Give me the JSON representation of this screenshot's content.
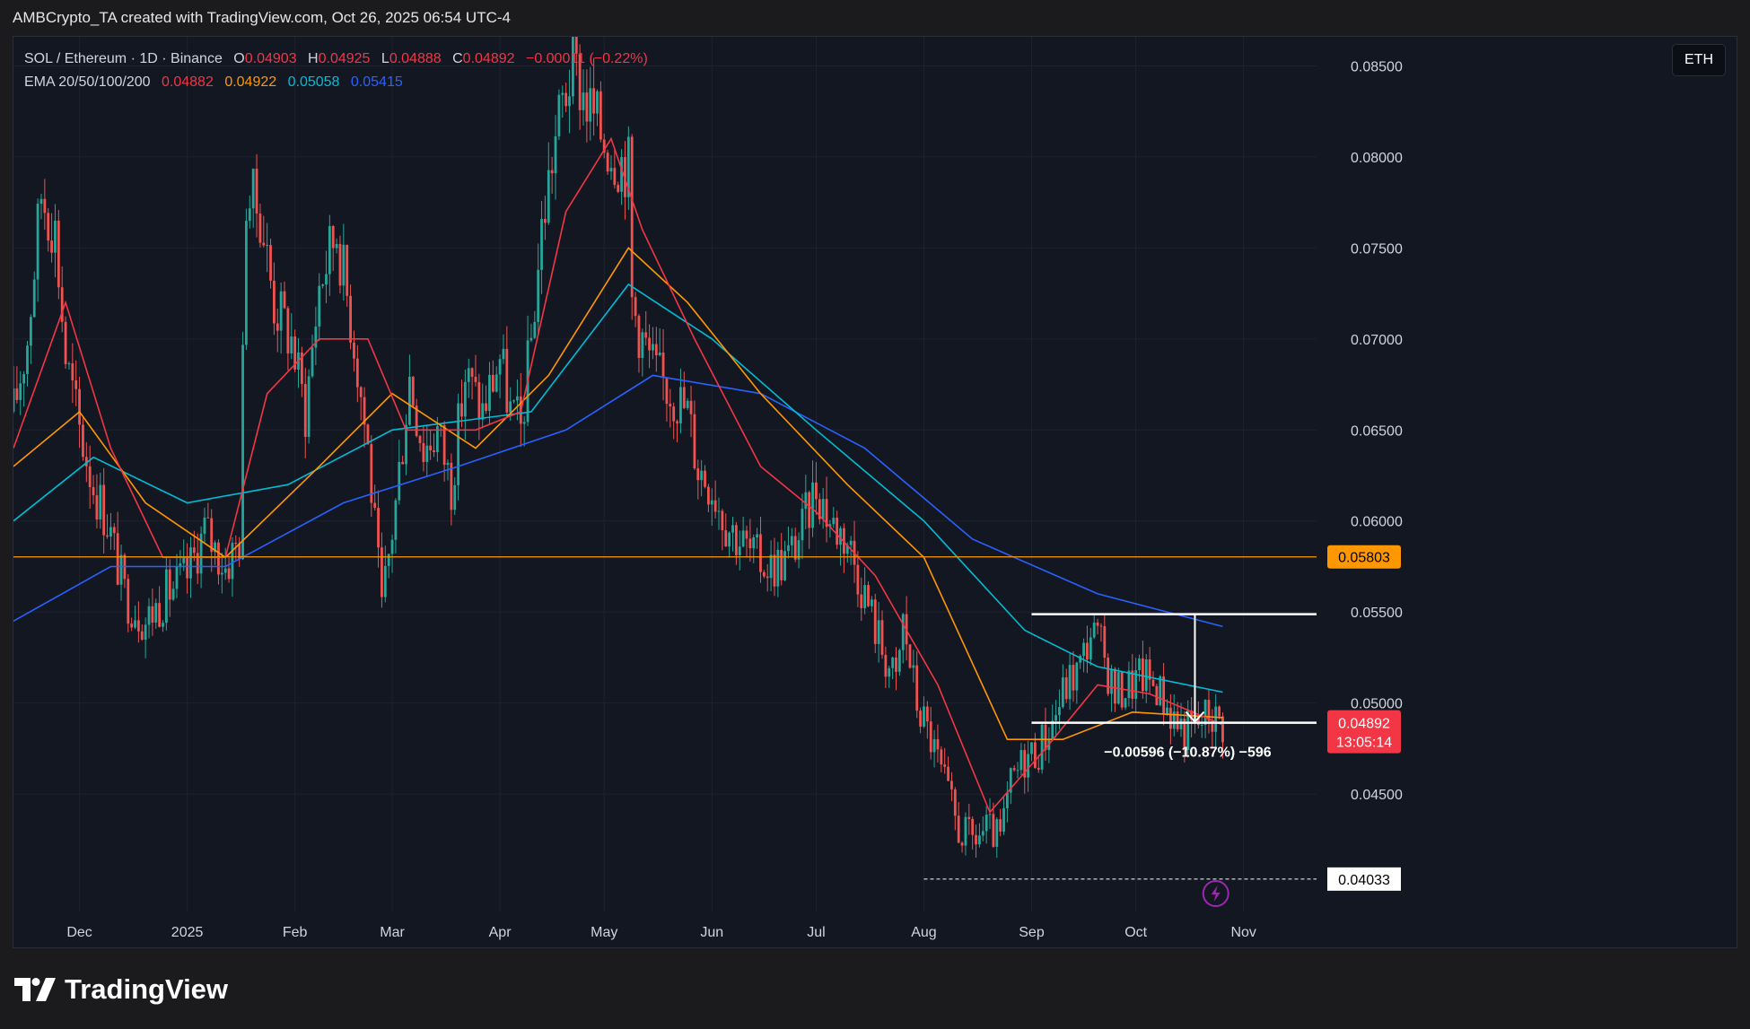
{
  "credit": "AMBCrypto_TA created with TradingView.com, Oct 26, 2025 06:54 UTC-4",
  "legend": {
    "symbol": "SOL / Ethereum · 1D · Binance",
    "o_label": "O",
    "o_value": "0.04903",
    "h_label": "H",
    "h_value": "0.04925",
    "l_label": "L",
    "l_value": "0.04888",
    "c_label": "C",
    "c_value": "0.04892",
    "change": "−0.00011 (−0.22%)",
    "ema_label": "EMA 20/50/100/200",
    "ema20": "0.04882",
    "ema50": "0.04922",
    "ema100": "0.05058",
    "ema200": "0.05415"
  },
  "symbol_button": "ETH",
  "logo_text": "TradingView",
  "colors": {
    "background": "#131722",
    "up": "#26a69a",
    "down": "#ef5350",
    "ema20": "#f23645",
    "ema50": "#ff9800",
    "ema100": "#00bcd4",
    "ema200": "#2962ff",
    "hline": "#ff9800",
    "price_tag": "#f23645",
    "support_tag": "#ffffff"
  },
  "chart_data": {
    "type": "candlestick",
    "y_axis_ticks": [
      "0.04500",
      "0.05000",
      "0.05500",
      "0.06000",
      "0.06500",
      "0.07000",
      "0.07500",
      "0.08000",
      "0.08500"
    ],
    "x_axis_ticks": [
      {
        "label": "Dec",
        "date": "2024-12-01"
      },
      {
        "label": "2025",
        "date": "2025-01-01"
      },
      {
        "label": "Feb",
        "date": "2025-02-01"
      },
      {
        "label": "Mar",
        "date": "2025-03-01"
      },
      {
        "label": "Apr",
        "date": "2025-04-01"
      },
      {
        "label": "May",
        "date": "2025-05-01"
      },
      {
        "label": "Jun",
        "date": "2025-06-01"
      },
      {
        "label": "Jul",
        "date": "2025-07-01"
      },
      {
        "label": "Aug",
        "date": "2025-08-01"
      },
      {
        "label": "Sep",
        "date": "2025-09-01"
      },
      {
        "label": "Oct",
        "date": "2025-10-01"
      },
      {
        "label": "Nov",
        "date": "2025-11-01"
      }
    ],
    "x_range": [
      "2024-11-12",
      "2025-11-22"
    ],
    "y_range": [
      0.0385,
      0.0866
    ],
    "price_path": [
      [
        "2024-11-12",
        0.066
      ],
      [
        "2024-11-16",
        0.07
      ],
      [
        "2024-11-20",
        0.078
      ],
      [
        "2024-11-24",
        0.076
      ],
      [
        "2024-11-27",
        0.069
      ],
      [
        "2024-12-01",
        0.065
      ],
      [
        "2024-12-05",
        0.062
      ],
      [
        "2024-12-09",
        0.06
      ],
      [
        "2024-12-14",
        0.056
      ],
      [
        "2024-12-20",
        0.0545
      ],
      [
        "2024-12-26",
        0.056
      ],
      [
        "2025-01-01",
        0.057
      ],
      [
        "2025-01-06",
        0.0595
      ],
      [
        "2025-01-12",
        0.0575
      ],
      [
        "2025-01-16",
        0.059
      ],
      [
        "2025-01-18",
        0.078
      ],
      [
        "2025-01-22",
        0.077
      ],
      [
        "2025-01-26",
        0.072
      ],
      [
        "2025-01-31",
        0.07
      ],
      [
        "2025-02-04",
        0.066
      ],
      [
        "2025-02-08",
        0.073
      ],
      [
        "2025-02-13",
        0.076
      ],
      [
        "2025-02-18",
        0.07
      ],
      [
        "2025-02-22",
        0.064
      ],
      [
        "2025-02-26",
        0.055
      ],
      [
        "2025-03-02",
        0.061
      ],
      [
        "2025-03-06",
        0.068
      ],
      [
        "2025-03-10",
        0.064
      ],
      [
        "2025-03-14",
        0.065
      ],
      [
        "2025-03-18",
        0.062
      ],
      [
        "2025-03-22",
        0.068
      ],
      [
        "2025-03-27",
        0.066
      ],
      [
        "2025-04-01",
        0.069
      ],
      [
        "2025-04-04",
        0.066
      ],
      [
        "2025-04-07",
        0.065
      ],
      [
        "2025-04-10",
        0.07
      ],
      [
        "2025-04-13",
        0.076
      ],
      [
        "2025-04-16",
        0.08
      ],
      [
        "2025-04-19",
        0.083
      ],
      [
        "2025-04-22",
        0.085
      ],
      [
        "2025-04-26",
        0.083
      ],
      [
        "2025-05-01",
        0.081
      ],
      [
        "2025-05-05",
        0.08
      ],
      [
        "2025-05-08",
        0.0795
      ],
      [
        "2025-05-09",
        0.072
      ],
      [
        "2025-05-12",
        0.07
      ],
      [
        "2025-05-16",
        0.068
      ],
      [
        "2025-05-21",
        0.067
      ],
      [
        "2025-05-25",
        0.066
      ],
      [
        "2025-05-28",
        0.063
      ],
      [
        "2025-06-01",
        0.062
      ],
      [
        "2025-06-05",
        0.06
      ],
      [
        "2025-06-09",
        0.059
      ],
      [
        "2025-06-13",
        0.058
      ],
      [
        "2025-06-18",
        0.0575
      ],
      [
        "2025-06-23",
        0.058
      ],
      [
        "2025-06-27",
        0.0595
      ],
      [
        "2025-07-01",
        0.062
      ],
      [
        "2025-07-05",
        0.06
      ],
      [
        "2025-07-10",
        0.059
      ],
      [
        "2025-07-15",
        0.056
      ],
      [
        "2025-07-20",
        0.053
      ],
      [
        "2025-07-24",
        0.051
      ],
      [
        "2025-07-26",
        0.0545
      ],
      [
        "2025-07-30",
        0.05
      ],
      [
        "2025-08-03",
        0.048
      ],
      [
        "2025-08-07",
        0.0455
      ],
      [
        "2025-08-11",
        0.043
      ],
      [
        "2025-08-15",
        0.0425
      ],
      [
        "2025-08-19",
        0.043
      ],
      [
        "2025-08-23",
        0.0425
      ],
      [
        "2025-08-26",
        0.0455
      ],
      [
        "2025-08-30",
        0.047
      ],
      [
        "2025-09-03",
        0.0475
      ],
      [
        "2025-09-07",
        0.049
      ],
      [
        "2025-09-11",
        0.051
      ],
      [
        "2025-09-15",
        0.052
      ],
      [
        "2025-09-18",
        0.054
      ],
      [
        "2025-09-21",
        0.053
      ],
      [
        "2025-09-25",
        0.0505
      ],
      [
        "2025-09-29",
        0.051
      ],
      [
        "2025-10-03",
        0.0515
      ],
      [
        "2025-10-07",
        0.051
      ],
      [
        "2025-10-11",
        0.0495
      ],
      [
        "2025-10-15",
        0.0485
      ],
      [
        "2025-10-19",
        0.0488
      ],
      [
        "2025-10-22",
        0.0495
      ],
      [
        "2025-10-26",
        0.0489
      ]
    ],
    "ema20": [
      [
        "2024-11-12",
        0.064
      ],
      [
        "2024-11-27",
        0.072
      ],
      [
        "2024-12-10",
        0.064
      ],
      [
        "2024-12-25",
        0.058
      ],
      [
        "2025-01-12",
        0.058
      ],
      [
        "2025-01-24",
        0.067
      ],
      [
        "2025-02-08",
        0.07
      ],
      [
        "2025-02-22",
        0.07
      ],
      [
        "2025-03-05",
        0.065
      ],
      [
        "2025-03-25",
        0.065
      ],
      [
        "2025-04-07",
        0.066
      ],
      [
        "2025-04-20",
        0.077
      ],
      [
        "2025-05-03",
        0.081
      ],
      [
        "2025-05-12",
        0.076
      ],
      [
        "2025-05-27",
        0.07
      ],
      [
        "2025-06-15",
        0.063
      ],
      [
        "2025-07-01",
        0.0605
      ],
      [
        "2025-07-18",
        0.057
      ],
      [
        "2025-08-05",
        0.051
      ],
      [
        "2025-08-20",
        0.044
      ],
      [
        "2025-09-05",
        0.0475
      ],
      [
        "2025-09-20",
        0.051
      ],
      [
        "2025-10-05",
        0.0505
      ],
      [
        "2025-10-26",
        0.0488
      ]
    ],
    "ema50": [
      [
        "2024-11-12",
        0.063
      ],
      [
        "2024-12-01",
        0.066
      ],
      [
        "2024-12-20",
        0.061
      ],
      [
        "2025-01-12",
        0.058
      ],
      [
        "2025-02-08",
        0.063
      ],
      [
        "2025-03-01",
        0.067
      ],
      [
        "2025-03-25",
        0.064
      ],
      [
        "2025-04-15",
        0.068
      ],
      [
        "2025-05-08",
        0.075
      ],
      [
        "2025-05-25",
        0.072
      ],
      [
        "2025-06-15",
        0.067
      ],
      [
        "2025-07-10",
        0.062
      ],
      [
        "2025-08-01",
        0.058
      ],
      [
        "2025-08-25",
        0.048
      ],
      [
        "2025-09-10",
        0.048
      ],
      [
        "2025-09-30",
        0.0495
      ],
      [
        "2025-10-26",
        0.0492
      ]
    ],
    "ema100": [
      [
        "2024-11-12",
        0.06
      ],
      [
        "2024-12-05",
        0.0635
      ],
      [
        "2025-01-01",
        0.061
      ],
      [
        "2025-01-30",
        0.062
      ],
      [
        "2025-03-01",
        0.065
      ],
      [
        "2025-04-10",
        0.066
      ],
      [
        "2025-05-08",
        0.073
      ],
      [
        "2025-06-01",
        0.07
      ],
      [
        "2025-07-01",
        0.065
      ],
      [
        "2025-08-01",
        0.06
      ],
      [
        "2025-08-30",
        0.054
      ],
      [
        "2025-09-20",
        0.052
      ],
      [
        "2025-10-26",
        0.0506
      ]
    ],
    "ema200": [
      [
        "2024-11-12",
        0.0545
      ],
      [
        "2024-12-10",
        0.0575
      ],
      [
        "2025-01-12",
        0.0575
      ],
      [
        "2025-02-15",
        0.061
      ],
      [
        "2025-03-20",
        0.063
      ],
      [
        "2025-04-20",
        0.065
      ],
      [
        "2025-05-15",
        0.068
      ],
      [
        "2025-06-15",
        0.067
      ],
      [
        "2025-07-15",
        0.064
      ],
      [
        "2025-08-15",
        0.059
      ],
      [
        "2025-09-20",
        0.056
      ],
      [
        "2025-10-26",
        0.0542
      ]
    ],
    "horizontal_line": {
      "value": 0.05803,
      "label": "0.05803"
    },
    "support_line": {
      "value": 0.04033,
      "label": "0.04033",
      "from": "2025-08-01"
    },
    "current_price": {
      "value": 0.04892,
      "label": "0.04892",
      "countdown": "13:05:14"
    },
    "measure": {
      "from_date": "2025-09-01",
      "to_date": "2025-10-26",
      "top": 0.05488,
      "bottom": 0.04892,
      "arrow_date": "2025-10-18",
      "label": "−0.00596 (−10.87%) −596"
    }
  }
}
